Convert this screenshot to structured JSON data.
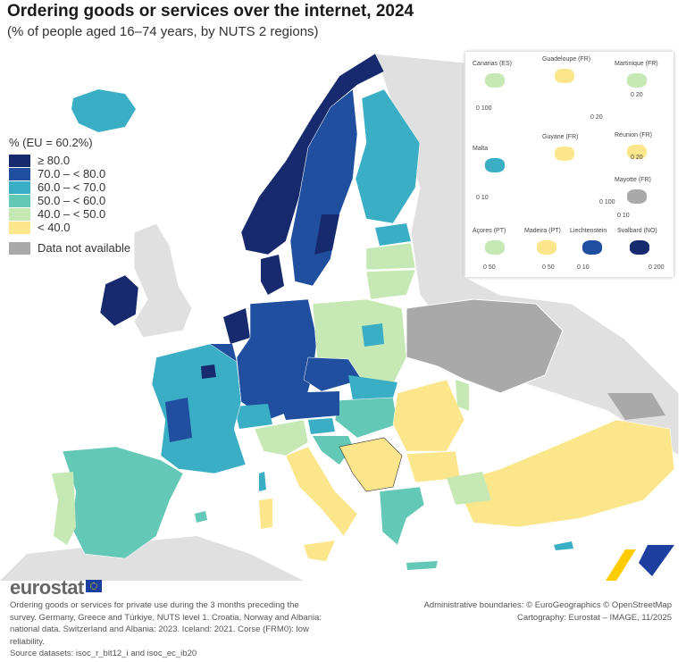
{
  "title": "Ordering goods or services over the internet, 2024",
  "subtitle": "(% of people aged 16–74 years, by NUTS 2 regions)",
  "legend": {
    "title": "% (EU = 60.2%)",
    "classes": [
      {
        "label": "≥ 80.0",
        "color": "#172a6e"
      },
      {
        "label": "70.0 – < 80.0",
        "color": "#1f4f9e"
      },
      {
        "label": "60.0 – < 70.0",
        "color": "#3aaec4"
      },
      {
        "label": "50.0 – < 60.0",
        "color": "#64c8b6"
      },
      {
        "label": "40.0 – < 50.0",
        "color": "#c6e8b4"
      },
      {
        "label": "< 40.0",
        "color": "#fce68c"
      }
    ],
    "na": {
      "label": "Data not available",
      "color": "#a9a9a9"
    }
  },
  "insets": [
    {
      "name": "Canarias (ES)",
      "scale": "0  100"
    },
    {
      "name": "Guadeloupe (FR)",
      "scale": "0  20"
    },
    {
      "name": "Martinique (FR)",
      "scale": "0  20"
    },
    {
      "name": "Réunion (FR)",
      "scale": "0  20"
    },
    {
      "name": "Malta",
      "scale": "0  10"
    },
    {
      "name": "Guyane (FR)",
      "scale": "0  100"
    },
    {
      "name": "Mayotte (FR)",
      "scale": "0 10"
    },
    {
      "name": "Açores (PT)",
      "scale": "0  50"
    },
    {
      "name": "Madeira (PT)",
      "scale": "0  50"
    },
    {
      "name": "Liechtenstein",
      "scale": "0  10"
    },
    {
      "name": "Svalbard (NO)",
      "scale": "0  200"
    }
  ],
  "brand": "eurostat",
  "note": "Ordering goods or services for private use during the 3 months preceding the survey. Germany, Greece and Türkiye, NUTS level 1. Croatia, Norway and Albania: national data. Switzerland and Albania: 2023. Iceland: 2021. Corse (FRM0): low reliability.",
  "sources": "Source datasets: isoc_r_blt12_i and isoc_ec_ib20",
  "credit1": "Administrative boundaries: © EuroGeographics © OpenStreetMap",
  "credit2": "Cartography: Eurostat – IMAGE, 11/2025"
}
